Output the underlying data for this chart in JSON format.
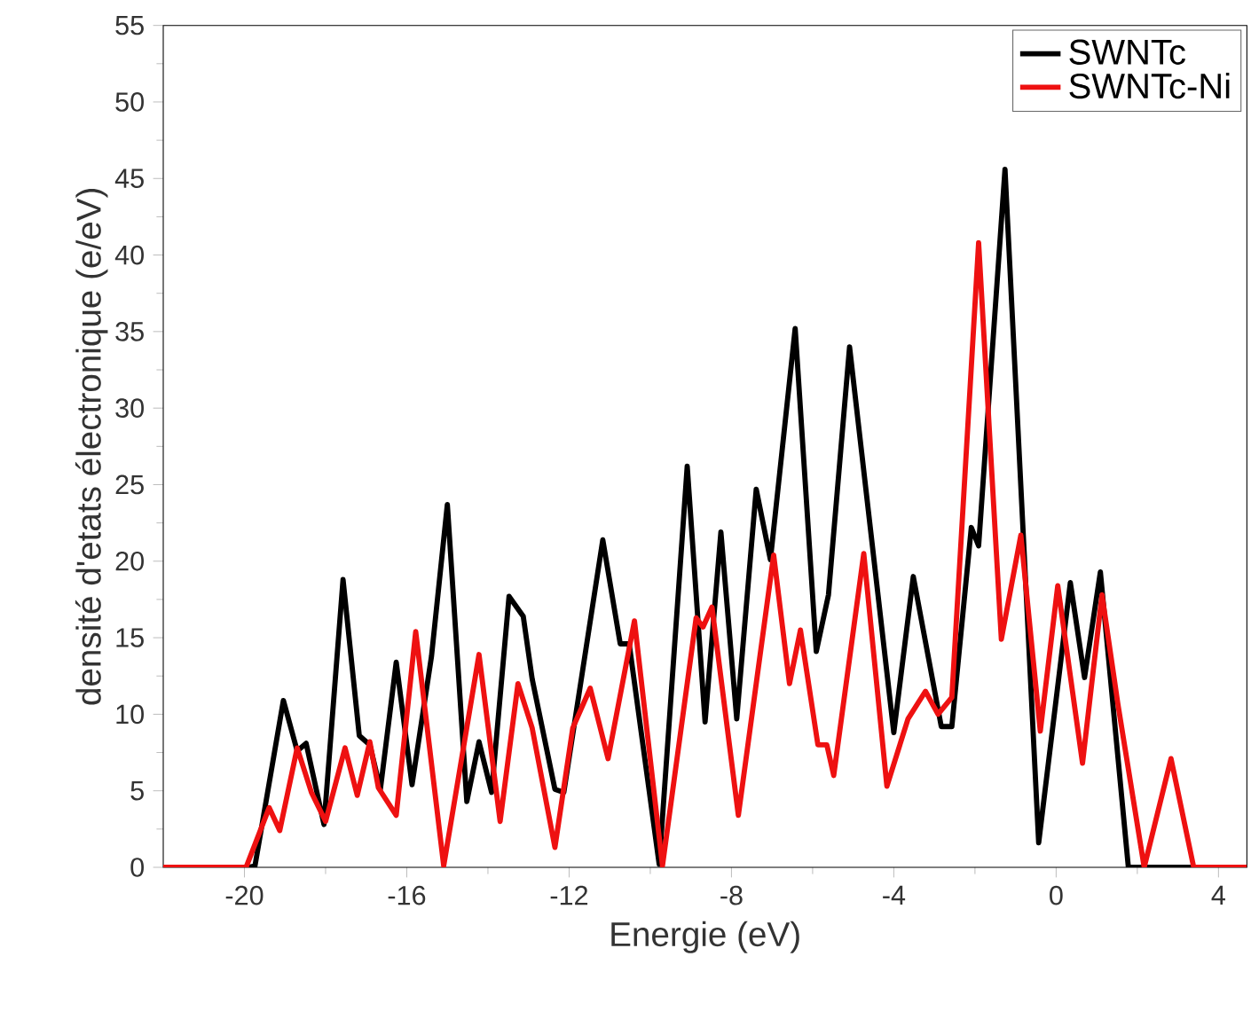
{
  "chart_data": {
    "type": "line",
    "xlabel": "Energie (eV)",
    "ylabel": "densité d'etats électronique (e/eV)",
    "xlim": [
      -22,
      4.7
    ],
    "xticks": [
      -20,
      -16,
      -12,
      -8,
      -4,
      0,
      4
    ],
    "ylim": [
      0,
      55
    ],
    "yticks": [
      0,
      5,
      10,
      15,
      20,
      25,
      30,
      35,
      40,
      45,
      50,
      55
    ],
    "legend": "top right",
    "grid": false,
    "marker": "none",
    "line_style": "solid",
    "series": [
      {
        "name": "SWNTc",
        "color": "#000000",
        "x": [
          -22,
          -19.9,
          -19.74,
          -19.04,
          -18.7,
          -18.48,
          -18.04,
          -17.57,
          -17.17,
          -16.91,
          -16.65,
          -16.26,
          -15.87,
          -15.39,
          -15.0,
          -14.52,
          -14.22,
          -13.91,
          -13.48,
          -13.13,
          -12.91,
          -12.35,
          -12.13,
          -11.17,
          -10.74,
          -10.52,
          -9.78,
          -9.09,
          -8.65,
          -8.26,
          -7.87,
          -7.39,
          -7.04,
          -6.43,
          -5.91,
          -5.61,
          -5.09,
          -4.0,
          -3.52,
          -2.83,
          -2.57,
          -2.09,
          -1.91,
          -1.26,
          -0.43,
          0.35,
          0.7,
          1.09,
          1.78,
          4.7
        ],
        "values": [
          0,
          0,
          0.1,
          10.9,
          7.6,
          8.1,
          2.8,
          18.8,
          8.6,
          8.0,
          5.1,
          13.4,
          5.4,
          13.8,
          23.7,
          4.3,
          8.2,
          4.9,
          17.7,
          16.4,
          12.3,
          5.1,
          4.9,
          21.4,
          14.6,
          14.6,
          0.2,
          26.2,
          9.5,
          21.9,
          9.7,
          24.7,
          20.1,
          35.2,
          14.1,
          17.8,
          34.0,
          8.8,
          19,
          9.2,
          9.2,
          22.2,
          21,
          45.6,
          1.6,
          18.6,
          12.4,
          19.3,
          0,
          0
        ]
      },
      {
        "name": "SWNTc-Ni",
        "color": "#ee1111",
        "x": [
          -22,
          -19.96,
          -19.39,
          -19.13,
          -18.7,
          -18.35,
          -18.0,
          -17.52,
          -17.22,
          -16.91,
          -16.7,
          -16.26,
          -15.78,
          -15.09,
          -14.22,
          -13.7,
          -13.26,
          -12.91,
          -12.35,
          -11.91,
          -11.48,
          -11.04,
          -10.39,
          -9.7,
          -8.87,
          -8.7,
          -8.48,
          -7.83,
          -6.96,
          -6.57,
          -6.3,
          -5.87,
          -5.65,
          -5.48,
          -4.74,
          -4.17,
          -3.65,
          -3.22,
          -2.91,
          -2.57,
          -1.91,
          -1.35,
          -0.87,
          -0.39,
          0.04,
          0.65,
          1.13,
          1.52,
          2.17,
          2.83,
          3.39,
          4.7
        ],
        "values": [
          0,
          0,
          3.9,
          2.4,
          7.8,
          4.9,
          3.0,
          7.8,
          4.7,
          8.2,
          5.2,
          3.4,
          15.4,
          0.1,
          13.9,
          3.0,
          12.0,
          9.1,
          1.3,
          9.1,
          11.7,
          7.1,
          16.1,
          0.1,
          16.3,
          15.7,
          17.0,
          3.4,
          20.4,
          12.0,
          15.5,
          8.0,
          8.0,
          6.0,
          20.5,
          5.3,
          9.7,
          11.5,
          10.0,
          11.1,
          40.8,
          14.9,
          21.7,
          8.9,
          18.4,
          6.8,
          17.8,
          10.7,
          0,
          7.1,
          0,
          0
        ]
      }
    ]
  }
}
